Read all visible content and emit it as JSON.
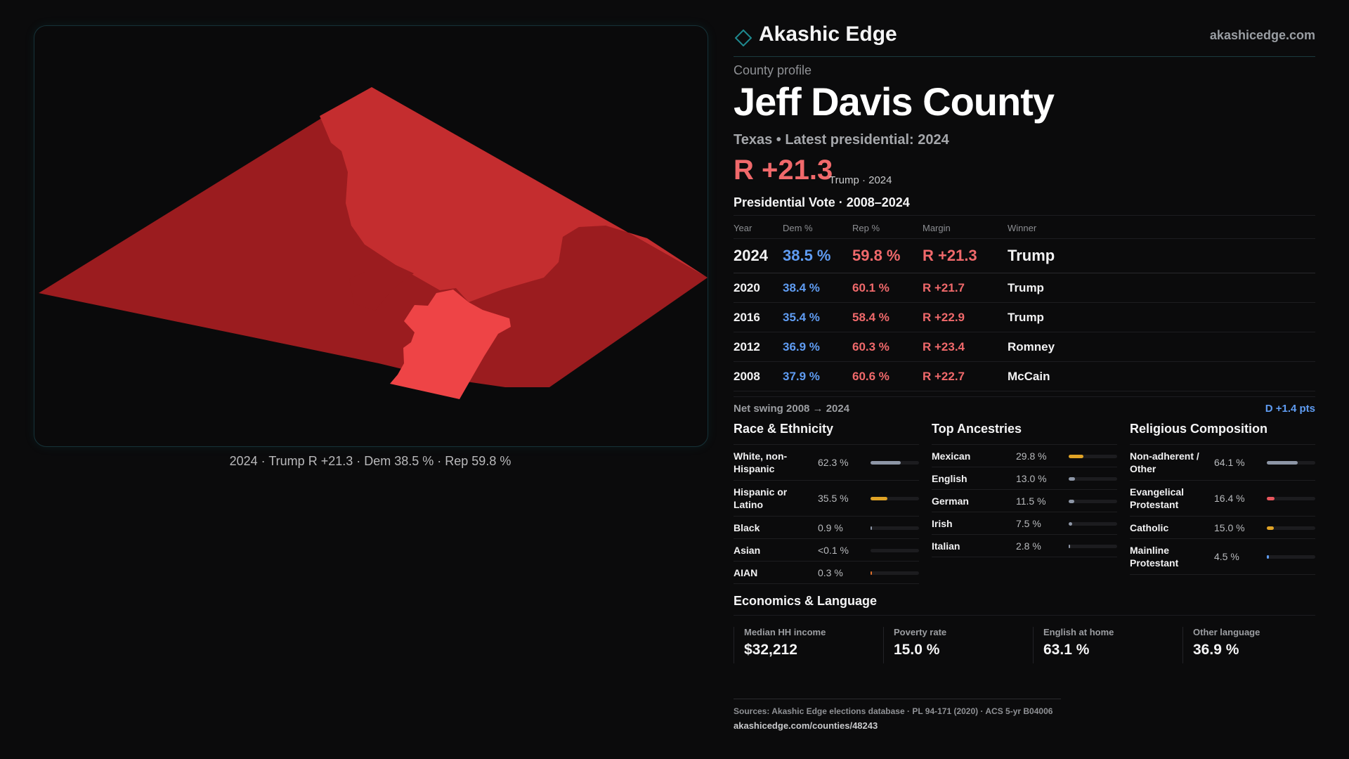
{
  "map": {
    "caption": "2024 · Trump R +21.3 · Dem 38.5 % · Rep 59.8 %",
    "colors": {
      "dark_red": "#9b1c1f",
      "mid_red": "#c42d2f",
      "light_red": "#ee4446",
      "panel_border": "#163238"
    }
  },
  "header": {
    "logo_icon": "diamond-icon",
    "brand": "Akashic Edge",
    "url": "akashicedge.com"
  },
  "profile": {
    "eyebrow": "County profile",
    "county": "Jeff Davis County",
    "subline": "Texas • Latest presidential: 2024",
    "margin": "R +21.3",
    "margin_note": "Trump · 2024"
  },
  "vote": {
    "title": "Presidential Vote · 2008–2024",
    "columns": [
      "Year",
      "Dem %",
      "Rep %",
      "Margin",
      "Winner"
    ],
    "rows": [
      {
        "year": "2024",
        "dem": "38.5 %",
        "rep": "59.8 %",
        "margin": "R +21.3",
        "winner": "Trump"
      },
      {
        "year": "2020",
        "dem": "38.4 %",
        "rep": "60.1 %",
        "margin": "R +21.7",
        "winner": "Trump"
      },
      {
        "year": "2016",
        "dem": "35.4 %",
        "rep": "58.4 %",
        "margin": "R +22.9",
        "winner": "Trump"
      },
      {
        "year": "2012",
        "dem": "36.9 %",
        "rep": "60.3 %",
        "margin": "R +23.4",
        "winner": "Romney"
      },
      {
        "year": "2008",
        "dem": "37.9 %",
        "rep": "60.6 %",
        "margin": "R +22.7",
        "winner": "McCain"
      }
    ],
    "swing_label": "Net swing 2008 → 2024",
    "swing_value": "D +1.4 pts"
  },
  "race": {
    "title": "Race & Ethnicity",
    "rows": [
      {
        "label": "White, non-Hispanic",
        "value": "62.3 %",
        "fraction": 0.623,
        "color": "#8d96a6"
      },
      {
        "label": "Hispanic or Latino",
        "value": "35.5 %",
        "fraction": 0.355,
        "color": "#e0a326"
      },
      {
        "label": "Black",
        "value": "0.9 %",
        "fraction": 0.009,
        "color": "#8d96a6"
      },
      {
        "label": "Asian",
        "value": "<0.1 %",
        "fraction": 0.0,
        "color": "#8d96a6"
      },
      {
        "label": "AIAN",
        "value": "0.3 %",
        "fraction": 0.003,
        "color": "#e0702a"
      }
    ]
  },
  "ancestry": {
    "title": "Top Ancestries",
    "rows": [
      {
        "label": "Mexican",
        "value": "29.8 %",
        "fraction": 0.298,
        "color": "#e0a326"
      },
      {
        "label": "English",
        "value": "13.0 %",
        "fraction": 0.13,
        "color": "#8d96a6"
      },
      {
        "label": "German",
        "value": "11.5 %",
        "fraction": 0.115,
        "color": "#8d96a6"
      },
      {
        "label": "Irish",
        "value": "7.5 %",
        "fraction": 0.075,
        "color": "#8d96a6"
      },
      {
        "label": "Italian",
        "value": "2.8 %",
        "fraction": 0.028,
        "color": "#8d96a6"
      }
    ]
  },
  "religion": {
    "title": "Religious Composition",
    "rows": [
      {
        "label": "Non-adherent / Other",
        "value": "64.1 %",
        "fraction": 0.641,
        "color": "#8d96a6"
      },
      {
        "label": "Evangelical Protestant",
        "value": "16.4 %",
        "fraction": 0.164,
        "color": "#e8565d"
      },
      {
        "label": "Catholic",
        "value": "15.0 %",
        "fraction": 0.15,
        "color": "#e0a326"
      },
      {
        "label": "Mainline Protestant",
        "value": "4.5 %",
        "fraction": 0.045,
        "color": "#5f9cf2"
      }
    ]
  },
  "economics": {
    "title": "Economics & Language",
    "cells": [
      {
        "label": "Median HH income",
        "value": "$32,212"
      },
      {
        "label": "Poverty rate",
        "value": "15.0 %"
      },
      {
        "label": "English at home",
        "value": "63.1 %"
      },
      {
        "label": "Other language",
        "value": "36.9 %"
      }
    ]
  },
  "sources": {
    "text": "Sources: Akashic Edge elections database · PL 94-171 (2020) · ACS 5-yr B04006",
    "url": "akashicedge.com/counties/48243"
  }
}
